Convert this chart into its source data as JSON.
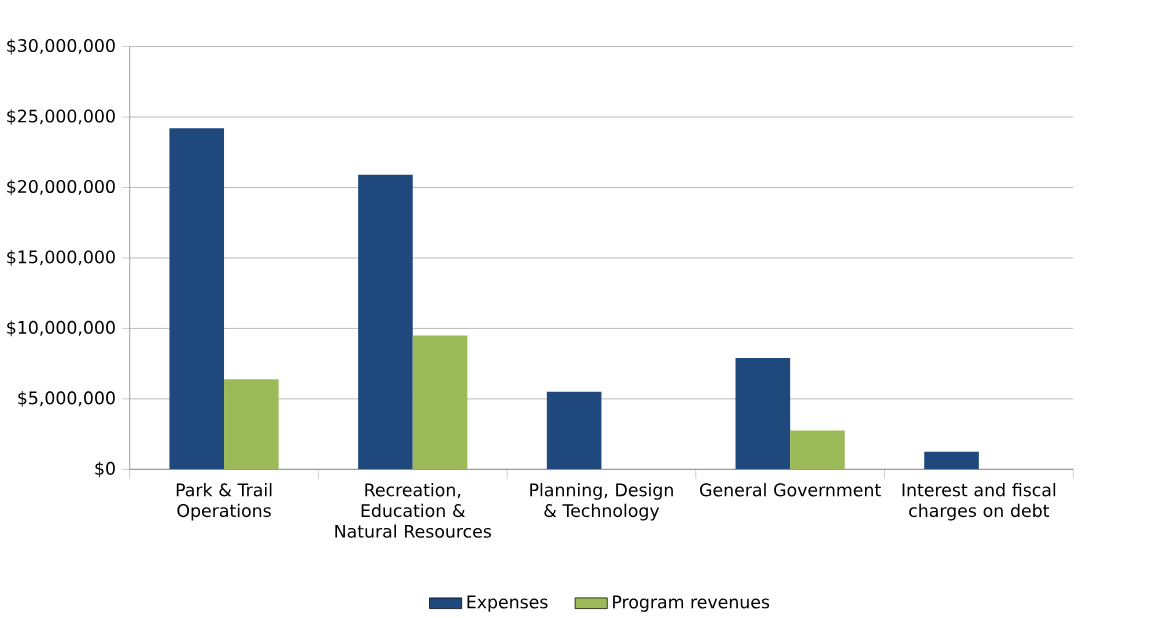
{
  "chart_data": {
    "type": "bar",
    "categories": [
      "Park & Trail Operations",
      "Recreation, Education & Natural Resources",
      "Planning, Design & Technology",
      "General Government",
      "Interest and fiscal charges on debt"
    ],
    "series": [
      {
        "name": "Expenses",
        "color": "#1f497d",
        "values": [
          24200000,
          20900000,
          5500000,
          7900000,
          1250000
        ]
      },
      {
        "name": "Program revenues",
        "color": "#9bbb59",
        "values": [
          6400000,
          9500000,
          null,
          2750000,
          null
        ]
      }
    ],
    "ylim": [
      0,
      30000000
    ],
    "yticks": [
      {
        "value": 0,
        "label": "$0"
      },
      {
        "value": 5000000,
        "label": "$5,000,000"
      },
      {
        "value": 10000000,
        "label": "$10,000,000"
      },
      {
        "value": 15000000,
        "label": "$15,000,000"
      },
      {
        "value": 20000000,
        "label": "$20,000,000"
      },
      {
        "value": 25000000,
        "label": "$25,000,000"
      },
      {
        "value": 30000000,
        "label": "$30,000,000"
      }
    ],
    "grid": "y",
    "legend": "bottom"
  }
}
